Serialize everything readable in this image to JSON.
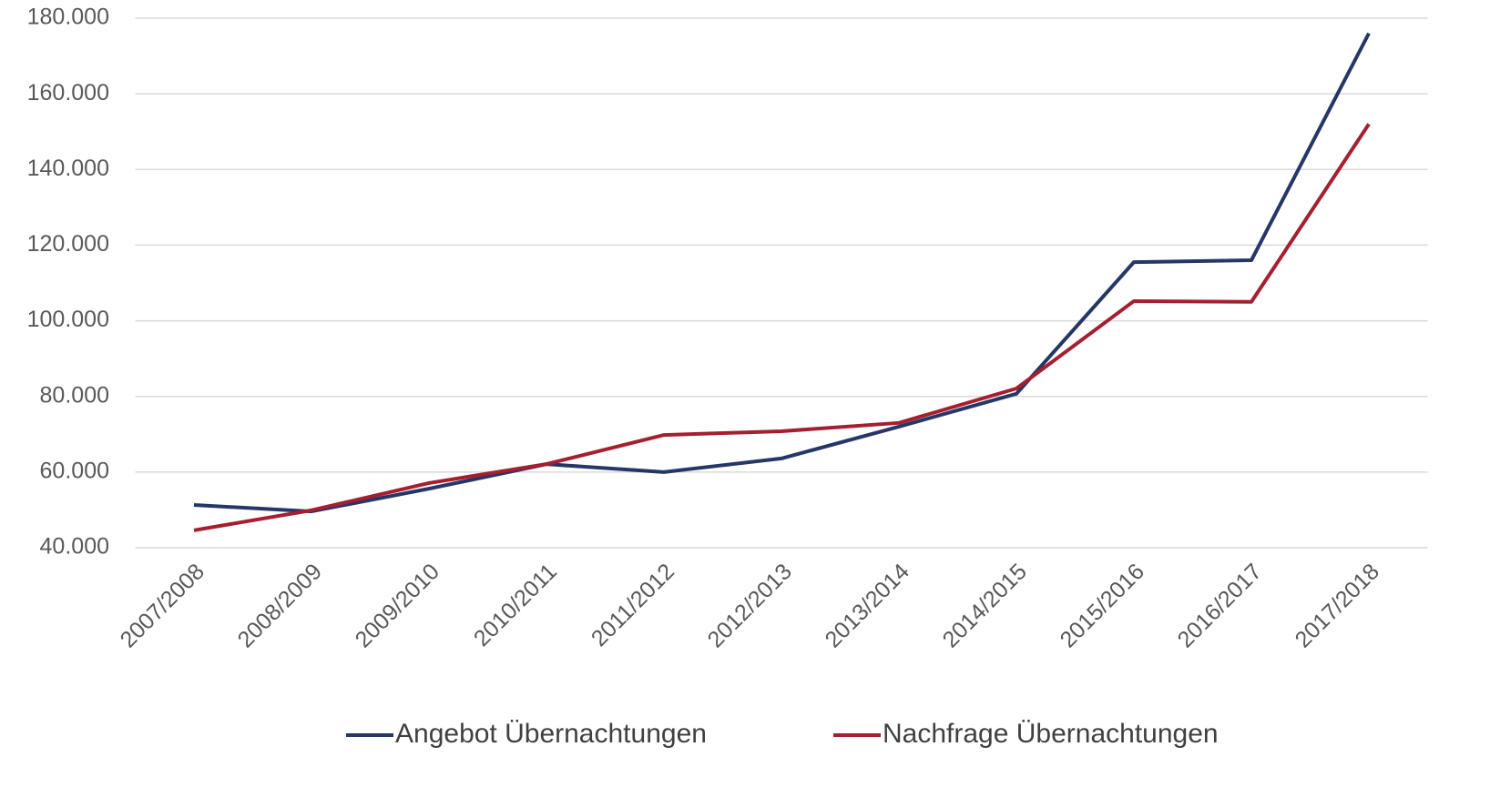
{
  "chart_data": {
    "type": "line",
    "categories": [
      "2007/2008",
      "2008/2009",
      "2009/2010",
      "2010/2011",
      "2011/2012",
      "2012/2013",
      "2013/2014",
      "2014/2015",
      "2015/2016",
      "2016/2017",
      "2017/2018"
    ],
    "series": [
      {
        "name": "Angebot Übernachtungen",
        "color": "#253767",
        "values": [
          51300,
          49600,
          55600,
          62100,
          60000,
          63600,
          72000,
          80700,
          115500,
          116000,
          176000
        ]
      },
      {
        "name": "Nachfrage Übernachtungen",
        "color": "#a51f30",
        "values": [
          44600,
          49900,
          57100,
          62100,
          69800,
          70800,
          73000,
          82100,
          105200,
          105000,
          152000
        ]
      }
    ],
    "ylim": [
      40000,
      180000
    ],
    "yticks": [
      {
        "value": 40000,
        "label": "40.000"
      },
      {
        "value": 60000,
        "label": "60.000"
      },
      {
        "value": 80000,
        "label": "80.000"
      },
      {
        "value": 100000,
        "label": "100.000"
      },
      {
        "value": 120000,
        "label": "120.000"
      },
      {
        "value": 140000,
        "label": "140.000"
      },
      {
        "value": 160000,
        "label": "160.000"
      },
      {
        "value": 180000,
        "label": "180.000"
      }
    ],
    "grid": true,
    "legend": "bottom"
  }
}
